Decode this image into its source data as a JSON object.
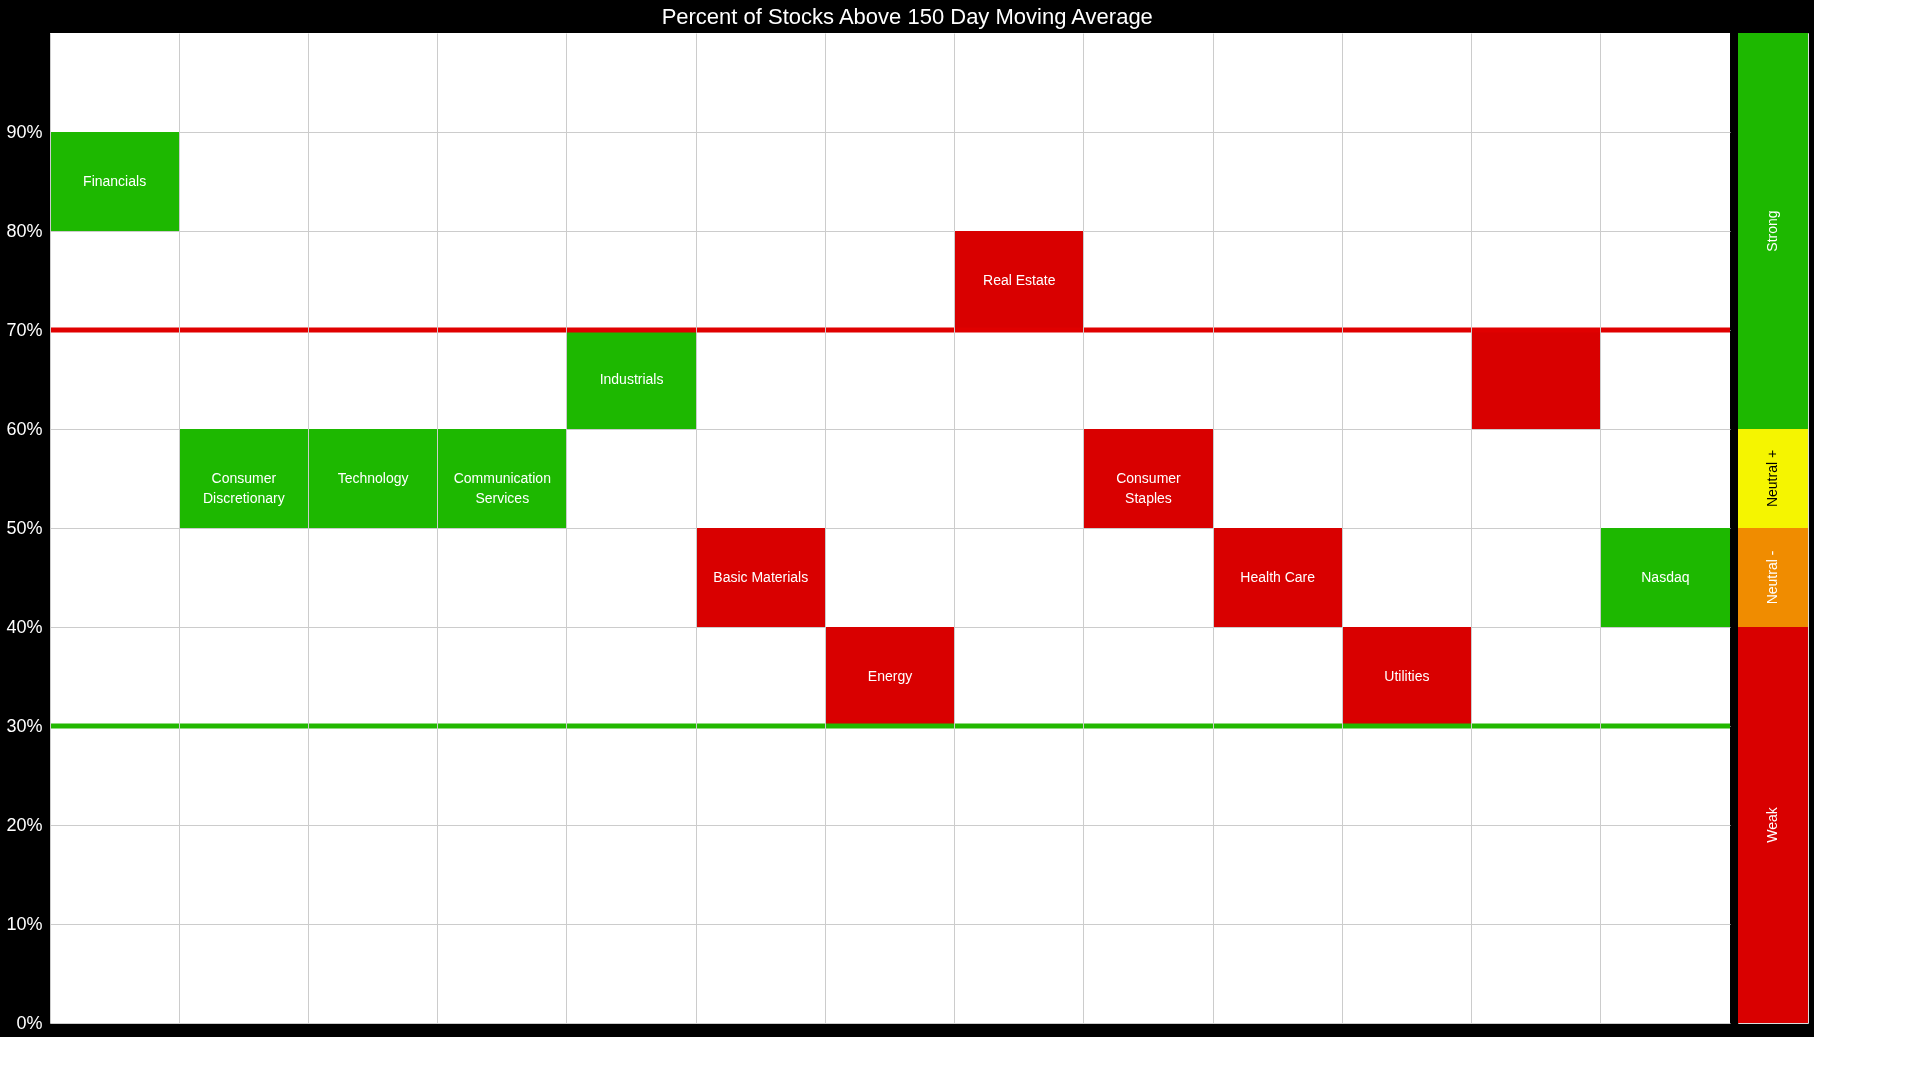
{
  "chart_data": [
    {
      "type": "bar",
      "title": "Percent of Stocks Above 150 Day Moving Average",
      "categories": [
        "Financials",
        "Consumer Discretionary",
        "Technology",
        "Communication Services",
        "Industrials",
        "Basic Materials",
        "Energy",
        "Real Estate",
        "Consumer Staples",
        "Health Care",
        "Utilities",
        null,
        "Nasdaq"
      ],
      "base": [
        80,
        50,
        50,
        50,
        60,
        40,
        30,
        70,
        50,
        40,
        30,
        60,
        40
      ],
      "values": [
        10,
        10,
        10,
        10,
        10,
        10,
        10,
        10,
        10,
        10,
        10,
        10,
        10
      ],
      "colors": [
        "#1db800",
        "#1db800",
        "#1db800",
        "#1db800",
        "#1db800",
        "#d90000",
        "#d90000",
        "#d90000",
        "#d90000",
        "#d90000",
        "#d90000",
        "#d90000",
        "#1db800"
      ],
      "ylim": [
        0,
        100
      ],
      "yticks": [
        {
          "value": 0,
          "label": "0%"
        },
        {
          "value": 10,
          "label": "10%"
        },
        {
          "value": 20,
          "label": "20%"
        },
        {
          "value": 30,
          "label": "30%"
        },
        {
          "value": 40,
          "label": "40%"
        },
        {
          "value": 50,
          "label": "50%"
        },
        {
          "value": 60,
          "label": "60%"
        },
        {
          "value": 70,
          "label": "70%"
        },
        {
          "value": 80,
          "label": "80%"
        },
        {
          "value": 90,
          "label": "90%"
        }
      ],
      "grid": true,
      "ref_lines": [
        {
          "axis": "y",
          "value": 70,
          "color": "#e00000"
        },
        {
          "axis": "y",
          "value": 30,
          "color": "#22b800"
        }
      ]
    },
    {
      "type": "bar",
      "stacked": true,
      "categories": [
        null
      ],
      "ylim": [
        0,
        100
      ],
      "tick_labels": false,
      "series": [
        {
          "name": "Weak",
          "color": "#d90000",
          "values": [
            40
          ]
        },
        {
          "name": "Neutral -",
          "color": "#f08c00",
          "values": [
            10
          ]
        },
        {
          "name": "Neutral +",
          "color": "#f5f500",
          "values": [
            10
          ]
        },
        {
          "name": "Strong",
          "color": "#1db800",
          "values": [
            40
          ]
        }
      ]
    }
  ]
}
